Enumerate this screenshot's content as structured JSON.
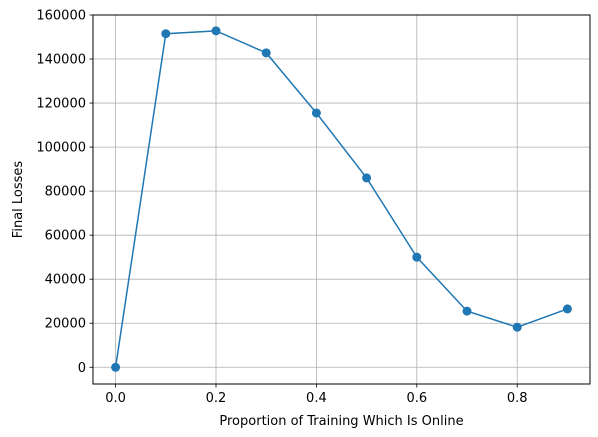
{
  "chart_data": {
    "type": "line",
    "title": "",
    "xlabel": "Proportion of Training Which Is Online",
    "ylabel": "Final Losses",
    "xlim": [
      -0.045,
      0.945
    ],
    "ylim": [
      -7600,
      160000
    ],
    "x_ticks": [
      0.0,
      0.2,
      0.4,
      0.6,
      0.8
    ],
    "x_tick_labels": [
      "0.0",
      "0.2",
      "0.4",
      "0.6",
      "0.8"
    ],
    "y_ticks": [
      0,
      20000,
      40000,
      60000,
      80000,
      100000,
      120000,
      140000,
      160000
    ],
    "y_tick_labels": [
      "0",
      "20000",
      "40000",
      "60000",
      "80000",
      "100000",
      "120000",
      "140000",
      "160000"
    ],
    "grid": true,
    "marker": "circle",
    "color": "#1f77b4",
    "series": [
      {
        "x": [
          0.0,
          0.1,
          0.2,
          0.3,
          0.4,
          0.5,
          0.6,
          0.7,
          0.8,
          0.9
        ],
        "y": [
          0,
          151500,
          152800,
          142800,
          115500,
          86000,
          50000,
          25500,
          18200,
          26500
        ]
      }
    ]
  }
}
